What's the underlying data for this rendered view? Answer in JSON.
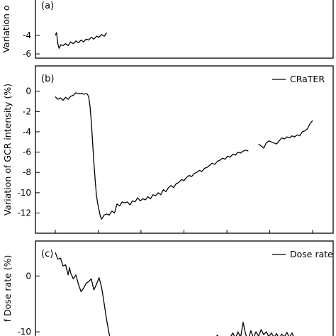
{
  "chart_data": [
    {
      "type": "line",
      "panel_label": "(a)",
      "ylabel": "Variation o",
      "ylim": [
        -6.3,
        0.2
      ],
      "yticks": [
        {
          "value": -4,
          "label": "-4"
        },
        {
          "value": -6,
          "label": "-6"
        }
      ],
      "xticks": [],
      "legend": null,
      "series": [
        {
          "name": "",
          "segments": [
            [
              [
                0.0,
                -4.0
              ],
              [
                0.005,
                -3.7
              ],
              [
                0.01,
                -4.9
              ],
              [
                0.015,
                -5.4
              ],
              [
                0.022,
                -5.0
              ],
              [
                0.03,
                -5.1
              ],
              [
                0.04,
                -4.9
              ],
              [
                0.05,
                -5.1
              ],
              [
                0.06,
                -4.7
              ],
              [
                0.07,
                -4.9
              ],
              [
                0.08,
                -4.6
              ],
              [
                0.09,
                -4.8
              ],
              [
                0.1,
                -4.5
              ],
              [
                0.11,
                -4.7
              ],
              [
                0.12,
                -4.4
              ],
              [
                0.13,
                -4.5
              ],
              [
                0.14,
                -4.2
              ],
              [
                0.15,
                -4.4
              ],
              [
                0.16,
                -4.1
              ],
              [
                0.17,
                -4.2
              ],
              [
                0.18,
                -3.9
              ],
              [
                0.19,
                -4.1
              ],
              [
                0.2,
                -3.7
              ]
            ]
          ]
        }
      ]
    },
    {
      "type": "line",
      "panel_label": "(b)",
      "ylabel": "Variation of GCR intensity (%)",
      "ylim": [
        -13.5,
        2.0
      ],
      "yticks": [
        {
          "value": 0,
          "label": "0"
        },
        {
          "value": -2,
          "label": "-2"
        },
        {
          "value": -4,
          "label": "-4"
        },
        {
          "value": -6,
          "label": "-6"
        },
        {
          "value": -8,
          "label": "-8"
        },
        {
          "value": -10,
          "label": "-10"
        },
        {
          "value": -12,
          "label": "-12"
        }
      ],
      "xticks": [
        0.0,
        0.167,
        0.333,
        0.5,
        0.667,
        0.833,
        1.0
      ],
      "legend": {
        "label": "CRaTER",
        "placement": "top-right"
      },
      "series": [
        {
          "name": "CRaTER",
          "segments": [
            [
              [
                0.0,
                -0.55
              ],
              [
                0.01,
                -0.8
              ],
              [
                0.02,
                -0.65
              ],
              [
                0.03,
                -0.9
              ],
              [
                0.04,
                -0.6
              ],
              [
                0.05,
                -0.8
              ],
              [
                0.06,
                -0.5
              ],
              [
                0.07,
                -0.4
              ],
              [
                0.08,
                -0.15
              ],
              [
                0.09,
                -0.25
              ],
              [
                0.1,
                -0.2
              ],
              [
                0.11,
                -0.3
              ],
              [
                0.12,
                -0.25
              ],
              [
                0.125,
                -0.3
              ],
              [
                0.13,
                -0.6
              ],
              [
                0.135,
                -1.5
              ],
              [
                0.14,
                -3.0
              ],
              [
                0.145,
                -5.0
              ],
              [
                0.15,
                -7.0
              ],
              [
                0.155,
                -8.8
              ],
              [
                0.16,
                -10.3
              ],
              [
                0.165,
                -11.1
              ],
              [
                0.17,
                -11.7
              ],
              [
                0.175,
                -12.3
              ],
              [
                0.18,
                -12.6
              ],
              [
                0.185,
                -12.4
              ],
              [
                0.19,
                -12.2
              ],
              [
                0.2,
                -12.1
              ],
              [
                0.21,
                -12.2
              ],
              [
                0.22,
                -11.8
              ],
              [
                0.23,
                -12.0
              ],
              [
                0.24,
                -11.1
              ],
              [
                0.25,
                -11.3
              ],
              [
                0.26,
                -10.9
              ],
              [
                0.27,
                -11.0
              ],
              [
                0.28,
                -10.9
              ],
              [
                0.29,
                -11.2
              ],
              [
                0.3,
                -10.8
              ],
              [
                0.31,
                -10.9
              ],
              [
                0.32,
                -10.5
              ],
              [
                0.33,
                -10.8
              ],
              [
                0.34,
                -10.6
              ],
              [
                0.35,
                -10.7
              ],
              [
                0.36,
                -10.4
              ],
              [
                0.37,
                -10.6
              ],
              [
                0.38,
                -10.2
              ],
              [
                0.39,
                -10.3
              ],
              [
                0.4,
                -10.0
              ],
              [
                0.41,
                -10.2
              ],
              [
                0.42,
                -9.7
              ],
              [
                0.43,
                -9.9
              ],
              [
                0.44,
                -9.5
              ],
              [
                0.45,
                -9.3
              ],
              [
                0.46,
                -9.5
              ],
              [
                0.47,
                -9.1
              ],
              [
                0.48,
                -9.0
              ],
              [
                0.49,
                -8.7
              ],
              [
                0.5,
                -8.8
              ],
              [
                0.51,
                -8.5
              ],
              [
                0.52,
                -8.3
              ],
              [
                0.53,
                -8.4
              ],
              [
                0.54,
                -8.1
              ],
              [
                0.55,
                -8.0
              ],
              [
                0.56,
                -7.8
              ],
              [
                0.57,
                -7.9
              ],
              [
                0.58,
                -7.6
              ],
              [
                0.59,
                -7.5
              ],
              [
                0.6,
                -7.3
              ],
              [
                0.61,
                -7.1
              ],
              [
                0.62,
                -7.2
              ],
              [
                0.63,
                -6.9
              ],
              [
                0.64,
                -6.8
              ],
              [
                0.65,
                -6.6
              ],
              [
                0.66,
                -6.7
              ],
              [
                0.67,
                -6.4
              ],
              [
                0.68,
                -6.5
              ],
              [
                0.69,
                -6.2
              ],
              [
                0.7,
                -6.3
              ],
              [
                0.71,
                -6.0
              ],
              [
                0.72,
                -6.1
              ],
              [
                0.73,
                -5.9
              ],
              [
                0.74,
                -5.8
              ],
              [
                0.75,
                -5.9
              ]
            ],
            [
              [
                0.79,
                -5.2
              ],
              [
                0.8,
                -5.4
              ],
              [
                0.81,
                -5.6
              ],
              [
                0.82,
                -5.1
              ],
              [
                0.83,
                -4.9
              ],
              [
                0.84,
                -5.0
              ],
              [
                0.85,
                -5.1
              ],
              [
                0.86,
                -5.2
              ],
              [
                0.87,
                -4.9
              ],
              [
                0.88,
                -4.6
              ],
              [
                0.89,
                -4.7
              ],
              [
                0.9,
                -4.5
              ],
              [
                0.91,
                -4.6
              ],
              [
                0.92,
                -4.4
              ],
              [
                0.93,
                -4.5
              ],
              [
                0.94,
                -4.3
              ],
              [
                0.95,
                -4.4
              ],
              [
                0.96,
                -4.0
              ],
              [
                0.97,
                -3.9
              ],
              [
                0.98,
                -3.7
              ],
              [
                0.99,
                -3.2
              ],
              [
                1.0,
                -2.9
              ]
            ]
          ]
        }
      ]
    },
    {
      "type": "line",
      "panel_label": "(c)",
      "ylabel": "f Dose rate (%)",
      "ylim": [
        -11.0,
        5.5
      ],
      "yticks": [
        {
          "value": 0,
          "label": "0"
        },
        {
          "value": -10,
          "label": "-10"
        }
      ],
      "xticks": [],
      "legend": {
        "label": "Dose rate",
        "placement": "top-right"
      },
      "series": [
        {
          "name": "Dose rate",
          "segments": [
            [
              [
                0.0,
                4.2
              ],
              [
                0.01,
                3.0
              ],
              [
                0.02,
                3.2
              ],
              [
                0.03,
                1.8
              ],
              [
                0.04,
                2.0
              ],
              [
                0.05,
                0.2
              ],
              [
                0.055,
                1.5
              ],
              [
                0.06,
                0.5
              ],
              [
                0.07,
                -0.5
              ],
              [
                0.08,
                0.2
              ],
              [
                0.09,
                -1.5
              ],
              [
                0.1,
                -2.8
              ],
              [
                0.11,
                -2.2
              ],
              [
                0.12,
                -1.3
              ],
              [
                0.13,
                -1.0
              ],
              [
                0.14,
                -0.5
              ],
              [
                0.15,
                -2.5
              ],
              [
                0.16,
                -1.5
              ],
              [
                0.17,
                -0.3
              ],
              [
                0.18,
                -2.0
              ],
              [
                0.19,
                -5.0
              ],
              [
                0.2,
                -8.0
              ],
              [
                0.21,
                -10.5
              ],
              [
                0.215,
                -11.5
              ]
            ],
            [
              [
                0.62,
                -11.2
              ],
              [
                0.63,
                -10.6
              ],
              [
                0.64,
                -11.5
              ]
            ],
            [
              [
                0.68,
                -11.0
              ],
              [
                0.69,
                -10.2
              ],
              [
                0.7,
                -11.2
              ],
              [
                0.71,
                -10.0
              ],
              [
                0.72,
                -11.0
              ],
              [
                0.73,
                -8.3
              ],
              [
                0.74,
                -10.5
              ],
              [
                0.75,
                -11.3
              ],
              [
                0.76,
                -9.8
              ],
              [
                0.77,
                -11.1
              ],
              [
                0.78,
                -10.0
              ],
              [
                0.79,
                -10.8
              ],
              [
                0.8,
                -9.6
              ],
              [
                0.81,
                -10.5
              ],
              [
                0.82,
                -10.0
              ],
              [
                0.83,
                -10.9
              ],
              [
                0.84,
                -10.2
              ],
              [
                0.85,
                -11.0
              ],
              [
                0.86,
                -10.3
              ],
              [
                0.87,
                -11.2
              ],
              [
                0.88,
                -10.4
              ],
              [
                0.89,
                -10.9
              ],
              [
                0.9,
                -10.1
              ],
              [
                0.91,
                -11.0
              ],
              [
                0.92,
                -10.2
              ],
              [
                0.93,
                -11.3
              ]
            ]
          ]
        }
      ]
    }
  ]
}
